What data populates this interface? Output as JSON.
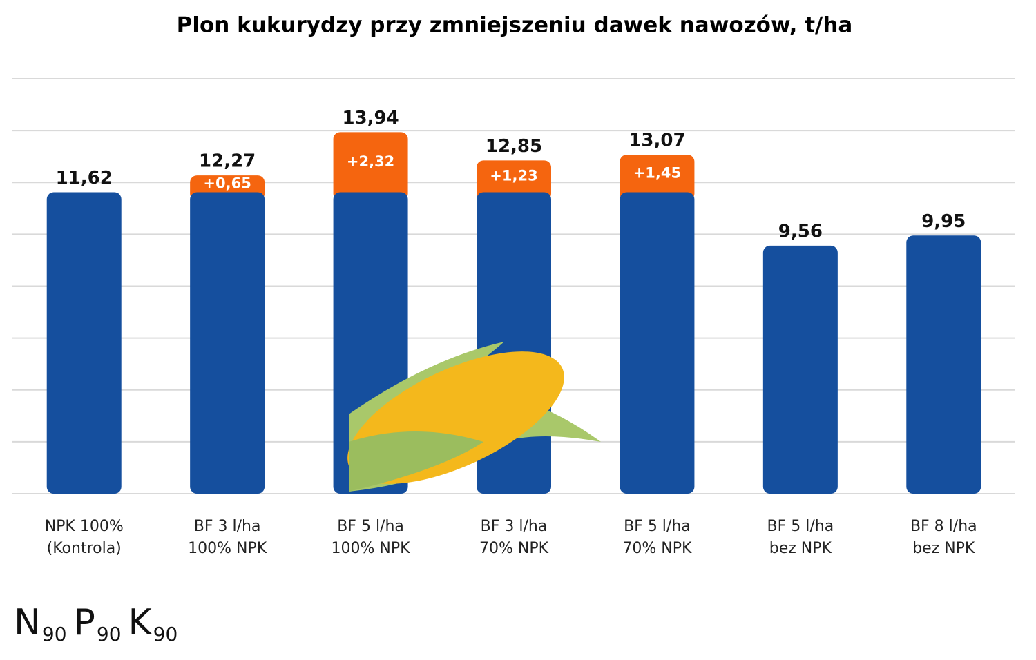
{
  "chart_data": {
    "type": "stacked_bar",
    "title": "Plon kukurydzy przy zmniejszeniu dawek nawozów, t/ha",
    "categories": [
      [
        "NPK 100%",
        "(Kontrola)"
      ],
      [
        "BF 3 l/ha",
        "100% NPK"
      ],
      [
        "BF 5 l/ha",
        "100% NPK"
      ],
      [
        "BF 3 l/ha",
        "70% NPK"
      ],
      [
        "BF 5 l/ha",
        "70% NPK"
      ],
      [
        "BF 5 l/ha",
        "bez NPK"
      ],
      [
        "BF 8 l/ha",
        "bez NPK"
      ]
    ],
    "series": [
      {
        "color": "#154f9e",
        "values": [
          11.62,
          11.62,
          11.62,
          11.62,
          11.62,
          9.56,
          9.95
        ]
      },
      {
        "color": "#f5650f",
        "values": [
          null,
          0.65,
          2.32,
          1.23,
          1.45,
          null,
          null
        ],
        "value_labels": [
          null,
          "+0,65",
          "+2,32",
          "+1,23",
          "+1,45",
          null,
          null
        ]
      }
    ],
    "totals": [
      11.62,
      12.27,
      13.94,
      12.85,
      13.07,
      9.56,
      9.95
    ],
    "total_labels": [
      "11,62",
      "12,27",
      "13,94",
      "12,85",
      "13,07",
      "9,56",
      "9,95"
    ],
    "ylim": [
      0,
      16
    ],
    "yticks": [
      0,
      2,
      4,
      6,
      8,
      10,
      12,
      14,
      16
    ],
    "grid": true,
    "footnote": [
      {
        "base": "N",
        "sub": "90"
      },
      {
        "base": "P",
        "sub": "90"
      },
      {
        "base": "K",
        "sub": "90"
      }
    ]
  }
}
